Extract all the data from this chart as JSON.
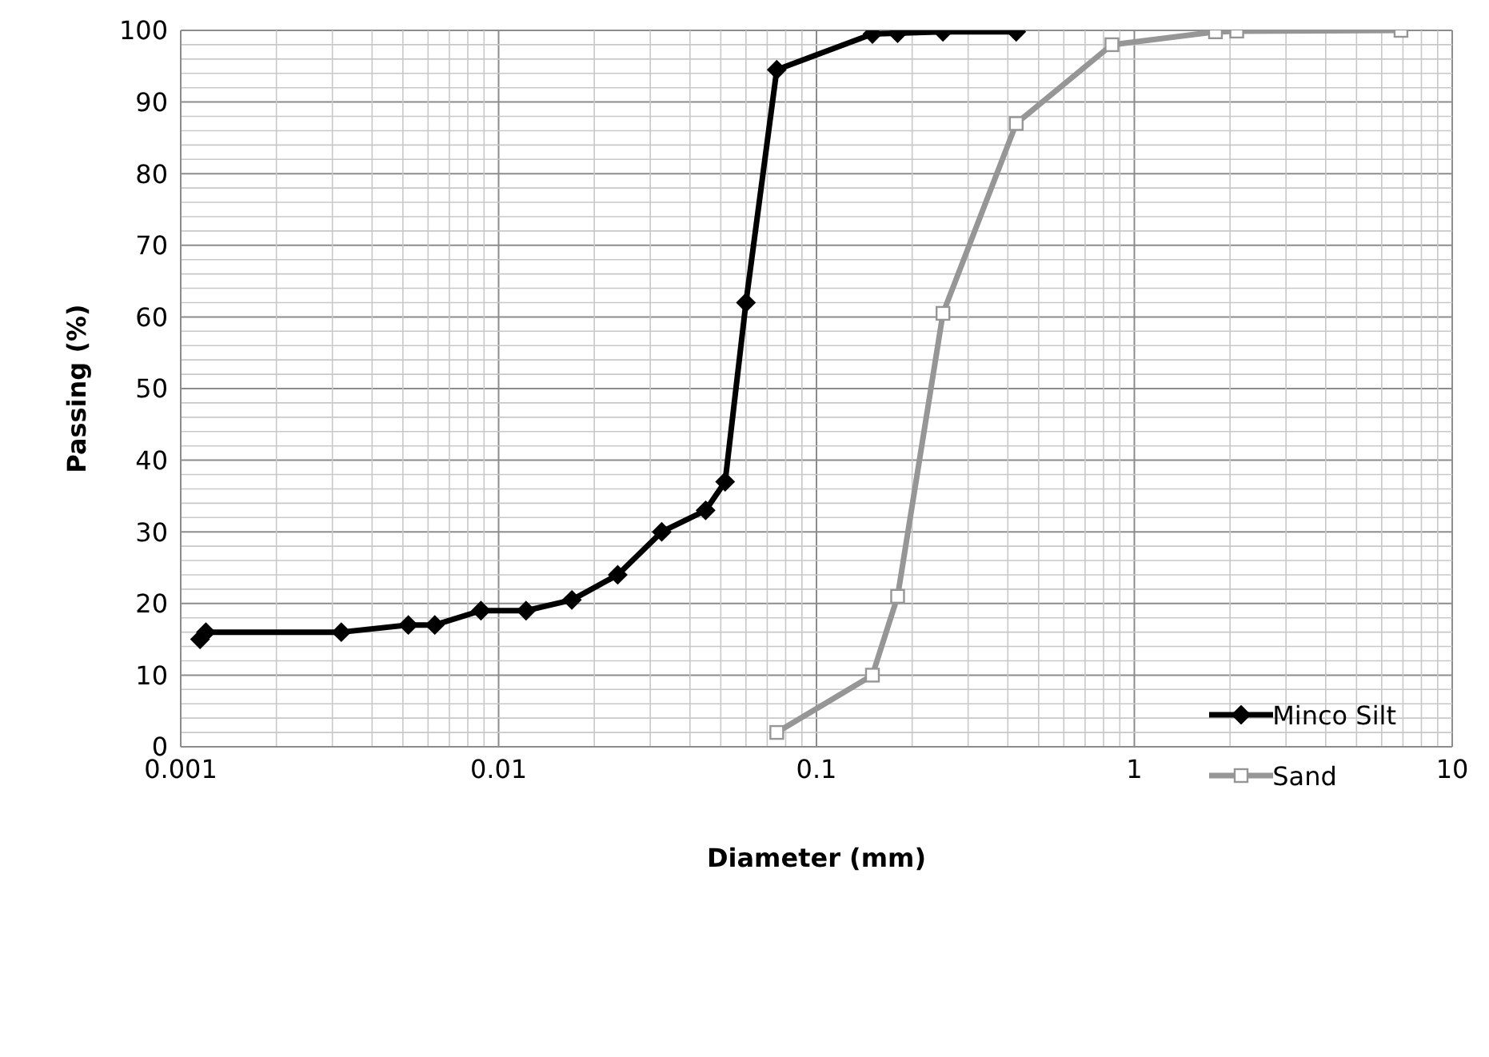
{
  "chart_data": {
    "type": "line",
    "xlabel": "Diameter (mm)",
    "ylabel": "Passing (%)",
    "log": "x",
    "xlim": [
      0.001,
      10
    ],
    "xticks": [
      0.001,
      0.01,
      0.1,
      1,
      10
    ],
    "ylim": [
      0,
      100
    ],
    "yticks": [
      0,
      10,
      20,
      30,
      40,
      50,
      60,
      70,
      80,
      90,
      100
    ],
    "grid": true,
    "legend": "right",
    "line_style": "solid",
    "series": [
      {
        "name": "Minco Silt",
        "color": "#000000",
        "marker": "diamond",
        "x": [
          0.00115,
          0.0012,
          0.0032,
          0.0052,
          0.0063,
          0.0088,
          0.0122,
          0.017,
          0.0237,
          0.0326,
          0.0448,
          0.0516,
          0.06,
          0.075,
          0.15,
          0.18,
          0.25,
          0.425
        ],
        "values": [
          15,
          16,
          16,
          17,
          17,
          19,
          19,
          20.5,
          24,
          30,
          33,
          37,
          62,
          94.5,
          99.5,
          99.6,
          99.8,
          99.8
        ]
      },
      {
        "name": "Sand",
        "color": "#969696",
        "marker": "square",
        "x": [
          0.075,
          0.15,
          0.18,
          0.25,
          0.425,
          0.85,
          1.8,
          2.1,
          6.9
        ],
        "values": [
          2,
          10,
          21,
          60.5,
          87,
          98,
          99.8,
          99.9,
          100
        ]
      }
    ]
  }
}
